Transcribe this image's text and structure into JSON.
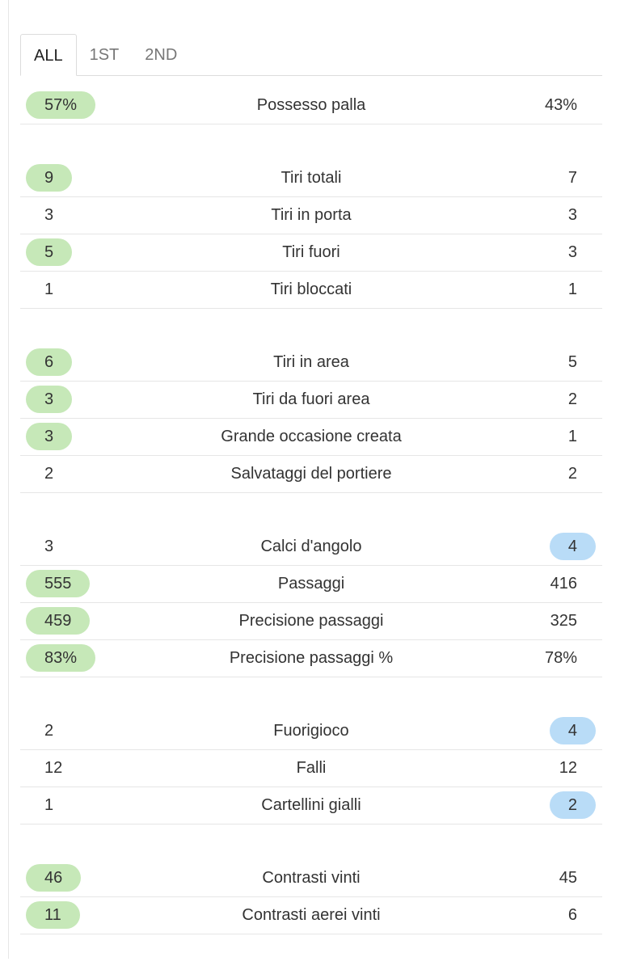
{
  "tabs": [
    "ALL",
    "1ST",
    "2ND"
  ],
  "active_tab": 0,
  "highlight_colors": {
    "home": "#c6e8b8",
    "away": "#b9dcf7"
  },
  "groups": [
    {
      "rows": [
        {
          "home": "57%",
          "label": "Possesso palla",
          "away": "43%",
          "highlight": "home"
        }
      ]
    },
    {
      "rows": [
        {
          "home": "9",
          "label": "Tiri totali",
          "away": "7",
          "highlight": "home"
        },
        {
          "home": "3",
          "label": "Tiri in porta",
          "away": "3",
          "highlight": null
        },
        {
          "home": "5",
          "label": "Tiri fuori",
          "away": "3",
          "highlight": "home"
        },
        {
          "home": "1",
          "label": "Tiri bloccati",
          "away": "1",
          "highlight": null
        }
      ]
    },
    {
      "rows": [
        {
          "home": "6",
          "label": "Tiri in area",
          "away": "5",
          "highlight": "home"
        },
        {
          "home": "3",
          "label": "Tiri da fuori area",
          "away": "2",
          "highlight": "home"
        },
        {
          "home": "3",
          "label": "Grande occasione creata",
          "away": "1",
          "highlight": "home"
        },
        {
          "home": "2",
          "label": "Salvataggi del portiere",
          "away": "2",
          "highlight": null
        }
      ]
    },
    {
      "rows": [
        {
          "home": "3",
          "label": "Calci d'angolo",
          "away": "4",
          "highlight": "away"
        },
        {
          "home": "555",
          "label": "Passaggi",
          "away": "416",
          "highlight": "home"
        },
        {
          "home": "459",
          "label": "Precisione passaggi",
          "away": "325",
          "highlight": "home"
        },
        {
          "home": "83%",
          "label": "Precisione passaggi %",
          "away": "78%",
          "highlight": "home"
        }
      ]
    },
    {
      "rows": [
        {
          "home": "2",
          "label": "Fuorigioco",
          "away": "4",
          "highlight": "away"
        },
        {
          "home": "12",
          "label": "Falli",
          "away": "12",
          "highlight": null
        },
        {
          "home": "1",
          "label": "Cartellini gialli",
          "away": "2",
          "highlight": "away"
        }
      ]
    },
    {
      "rows": [
        {
          "home": "46",
          "label": "Contrasti vinti",
          "away": "45",
          "highlight": "home"
        },
        {
          "home": "11",
          "label": "Contrasti aerei vinti",
          "away": "6",
          "highlight": "home"
        }
      ]
    }
  ]
}
